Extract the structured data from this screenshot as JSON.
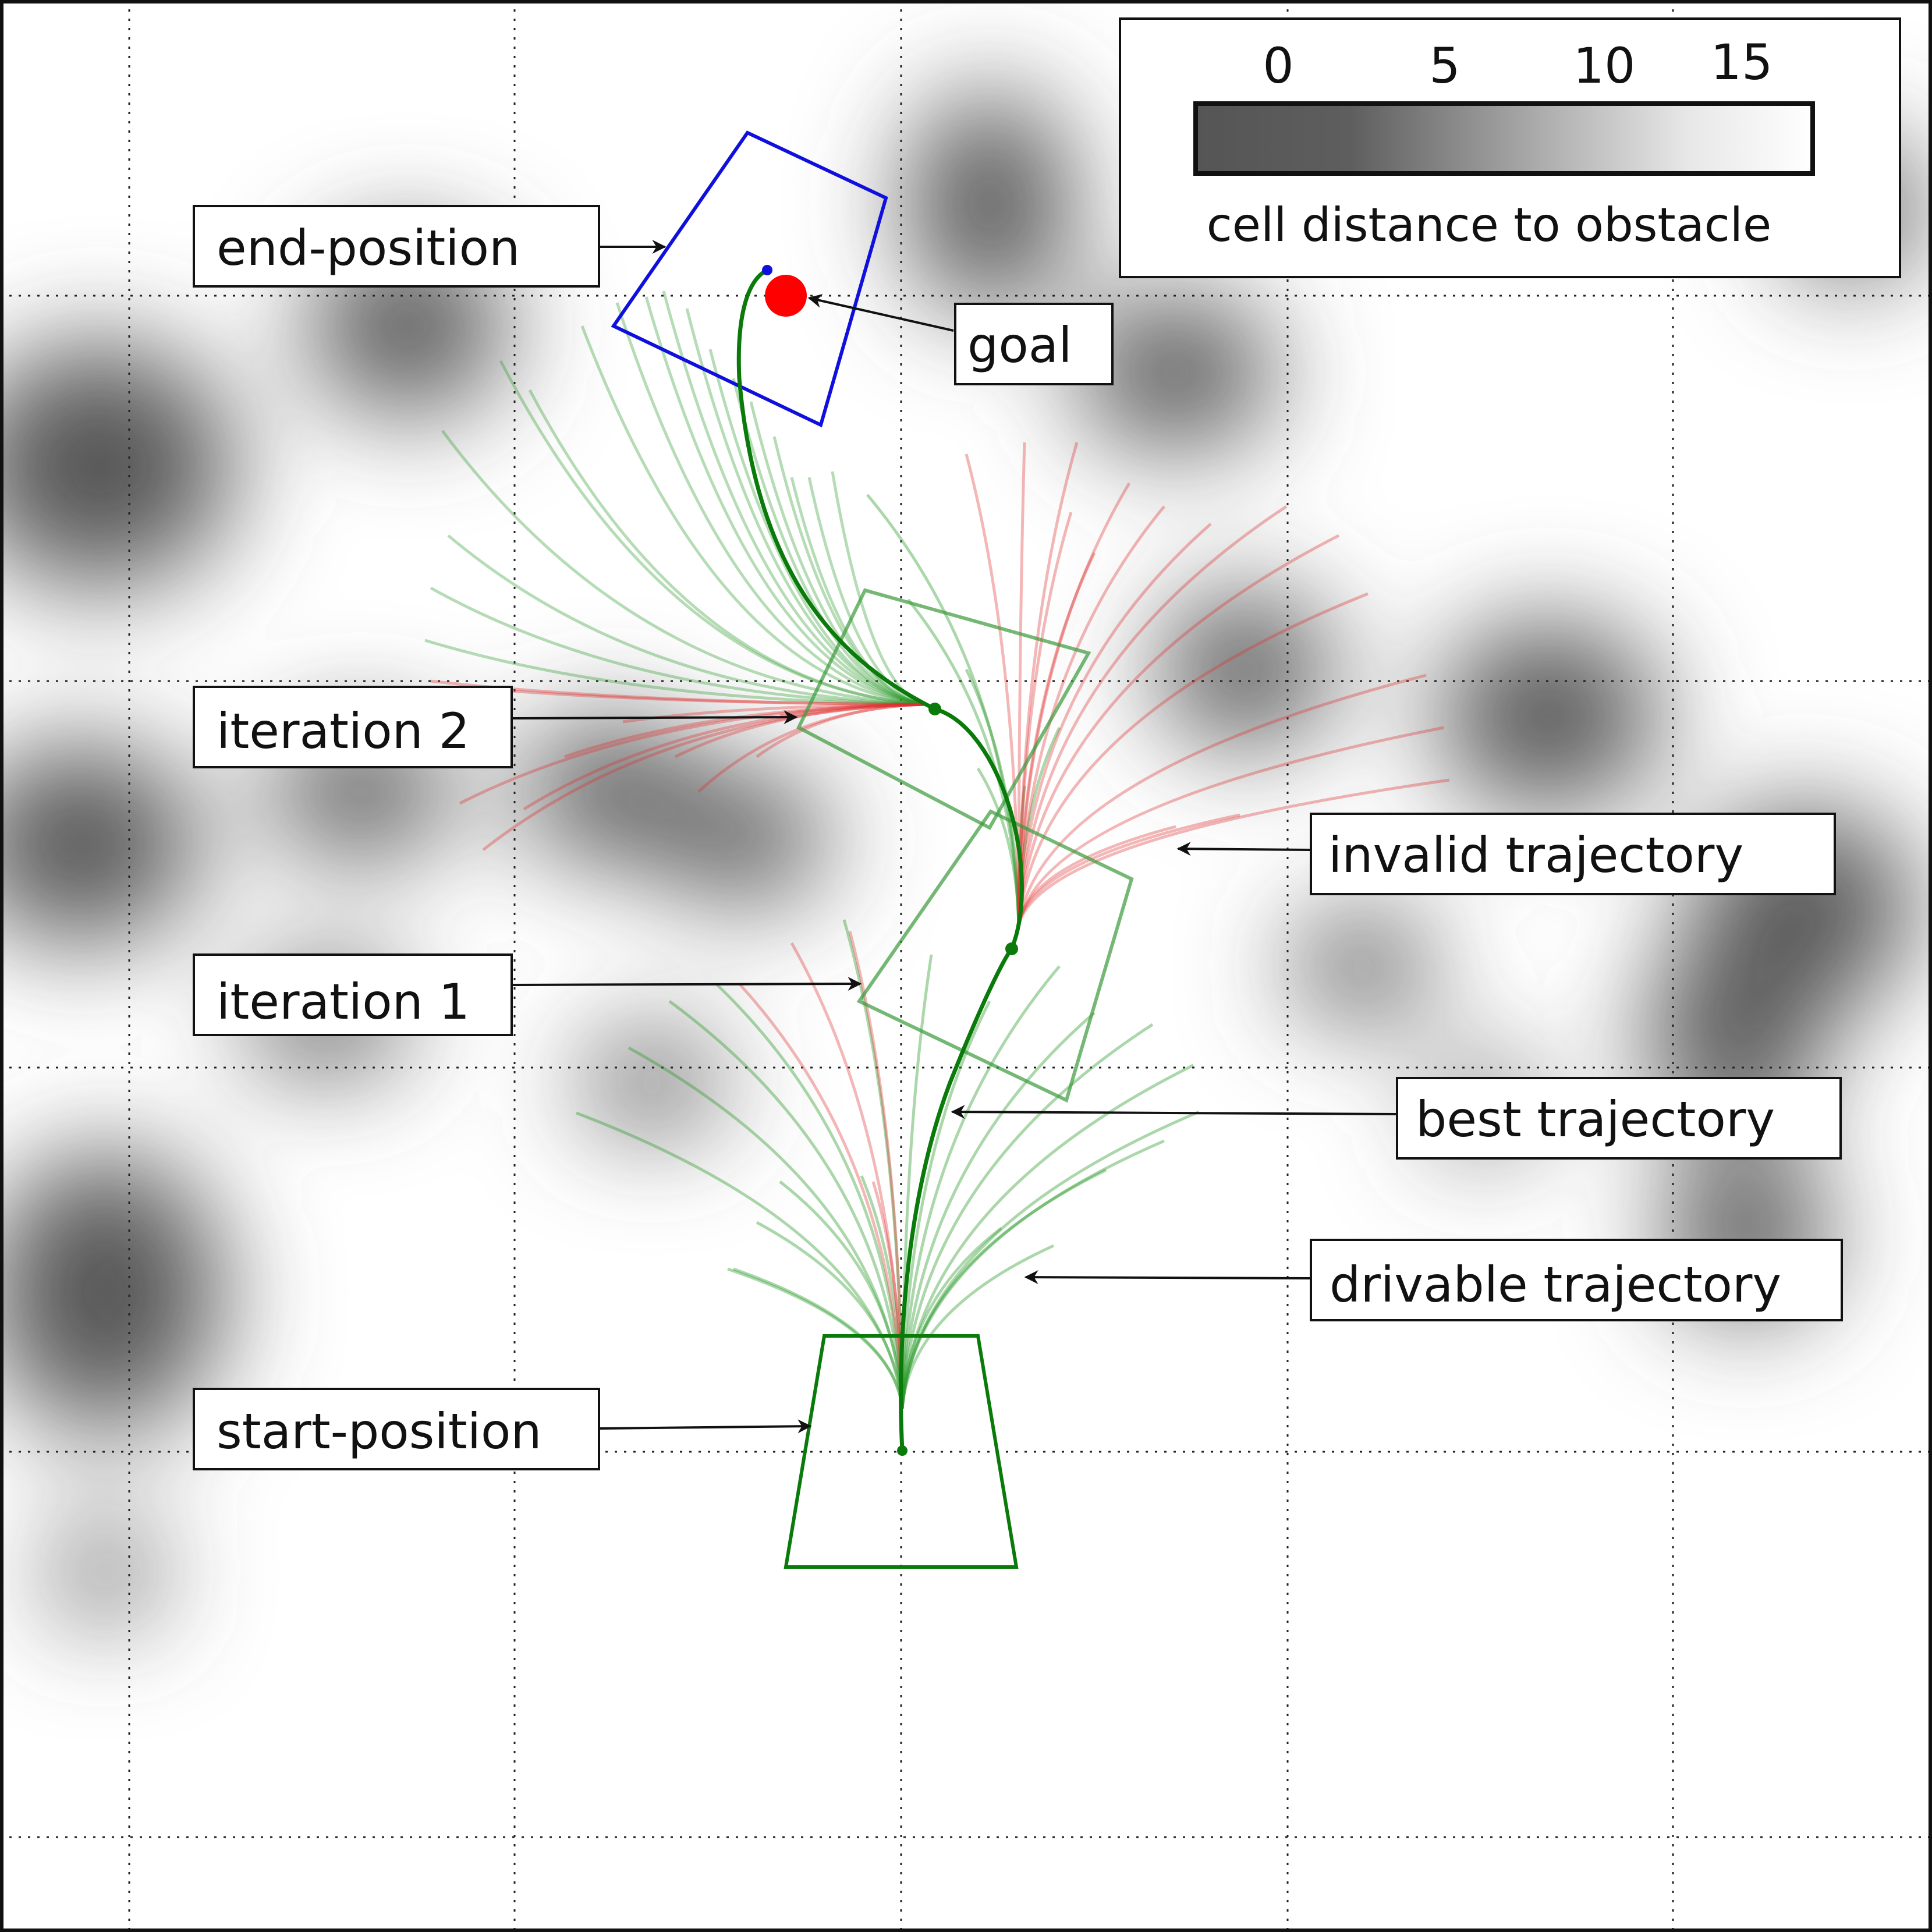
{
  "annotations": {
    "end_position": "end-position",
    "goal": "goal",
    "iteration_2": "iteration 2",
    "iteration_1": "iteration 1",
    "invalid_trajectory": "invalid trajectory",
    "best_trajectory": "best trajectory",
    "drivable_trajectory": "drivable trajectory",
    "start_position": "start-position"
  },
  "colorbar": {
    "title": "cell distance to obstacle",
    "ticks": [
      "0",
      "5",
      "10",
      "15"
    ],
    "range": [
      0,
      15
    ]
  },
  "colors": {
    "drivable": "#2e9a2e",
    "invalid": "#e03030",
    "best": "#0a7a0a",
    "end_box": "#1010dd",
    "start_box": "#0a7a0a",
    "goal": "#ff0000",
    "obstacle_dark": "#555555"
  }
}
